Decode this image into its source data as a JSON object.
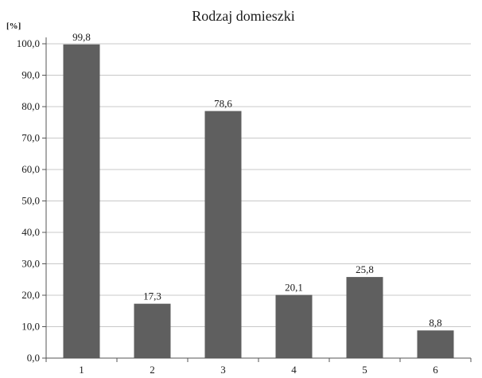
{
  "chart_data": {
    "type": "bar",
    "title": "Rodzaj domieszki",
    "ylabel": "[%]",
    "xlabel": "",
    "categories": [
      "1",
      "2",
      "3",
      "4",
      "5",
      "6"
    ],
    "values": [
      99.8,
      17.3,
      78.6,
      20.1,
      25.8,
      8.8
    ],
    "value_labels": [
      "99,8",
      "17,3",
      "78,6",
      "20,1",
      "25,8",
      "8,8"
    ],
    "ylim": [
      0,
      100
    ],
    "y_ticks": [
      "0,0",
      "10,0",
      "20,0",
      "30,0",
      "40,0",
      "50,0",
      "60,0",
      "70,0",
      "80,0",
      "90,0",
      "100,0"
    ],
    "grid": true,
    "legend": "none",
    "bar_color": "#5f5f5f",
    "grid_color": "#c8c8c8"
  }
}
